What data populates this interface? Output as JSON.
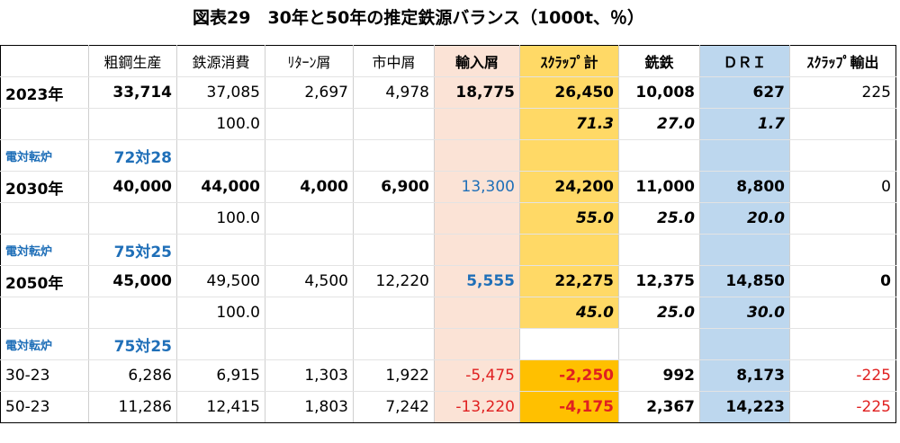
{
  "title": "図表29　30年と50年の推定鉄源バランス（1000t、％）",
  "colors": {
    "peach": "#fbe3d6",
    "yellow": "#ffd966",
    "orange": "#ffc000",
    "light_blue": "#bdd7ee",
    "blue_text": "#1f6fb8",
    "red_text": "#e02020"
  },
  "headers": [
    "",
    "粗鋼生産",
    "鉄源消費",
    "ﾘﾀｰﾝ屑",
    "市中屑",
    "輸入屑",
    "ｽｸﾗｯﾌﾟ計",
    "銑鉄",
    "ＤＲＩ",
    "ｽｸﾗｯﾌﾟ輸出"
  ],
  "blocks": [
    {
      "year": "2023年",
      "values": [
        "33,714",
        "37,085",
        "2,697",
        "4,978",
        "18,775",
        "26,450",
        "10,008",
        "627",
        "225"
      ],
      "pct": [
        "100.0",
        "71.3",
        "27.0",
        "1.7"
      ],
      "ratio_label": "電対転炉",
      "ratio": "72対28"
    },
    {
      "year": "2030年",
      "values": [
        "40,000",
        "44,000",
        "4,000",
        "6,900",
        "13,300",
        "24,200",
        "11,000",
        "8,800",
        "0"
      ],
      "pct": [
        "100.0",
        "55.0",
        "25.0",
        "20.0"
      ],
      "ratio_label": "電対転炉",
      "ratio": "75対25"
    },
    {
      "year": "2050年",
      "values": [
        "45,000",
        "49,500",
        "4,500",
        "12,220",
        "5,555",
        "22,275",
        "12,375",
        "14,850",
        "0"
      ],
      "pct": [
        "100.0",
        "45.0",
        "25.0",
        "30.0"
      ],
      "ratio_label": "電対転炉",
      "ratio": "75対25"
    }
  ],
  "diffs": [
    {
      "label": "30-23",
      "values": [
        "6,286",
        "6,915",
        "1,303",
        "1,922",
        "-5,475",
        "-2,250",
        "992",
        "8,173",
        "-225"
      ]
    },
    {
      "label": "50-23",
      "values": [
        "11,286",
        "12,415",
        "1,803",
        "7,242",
        "-13,220",
        "-4,175",
        "2,367",
        "14,223",
        "-225"
      ]
    }
  ]
}
